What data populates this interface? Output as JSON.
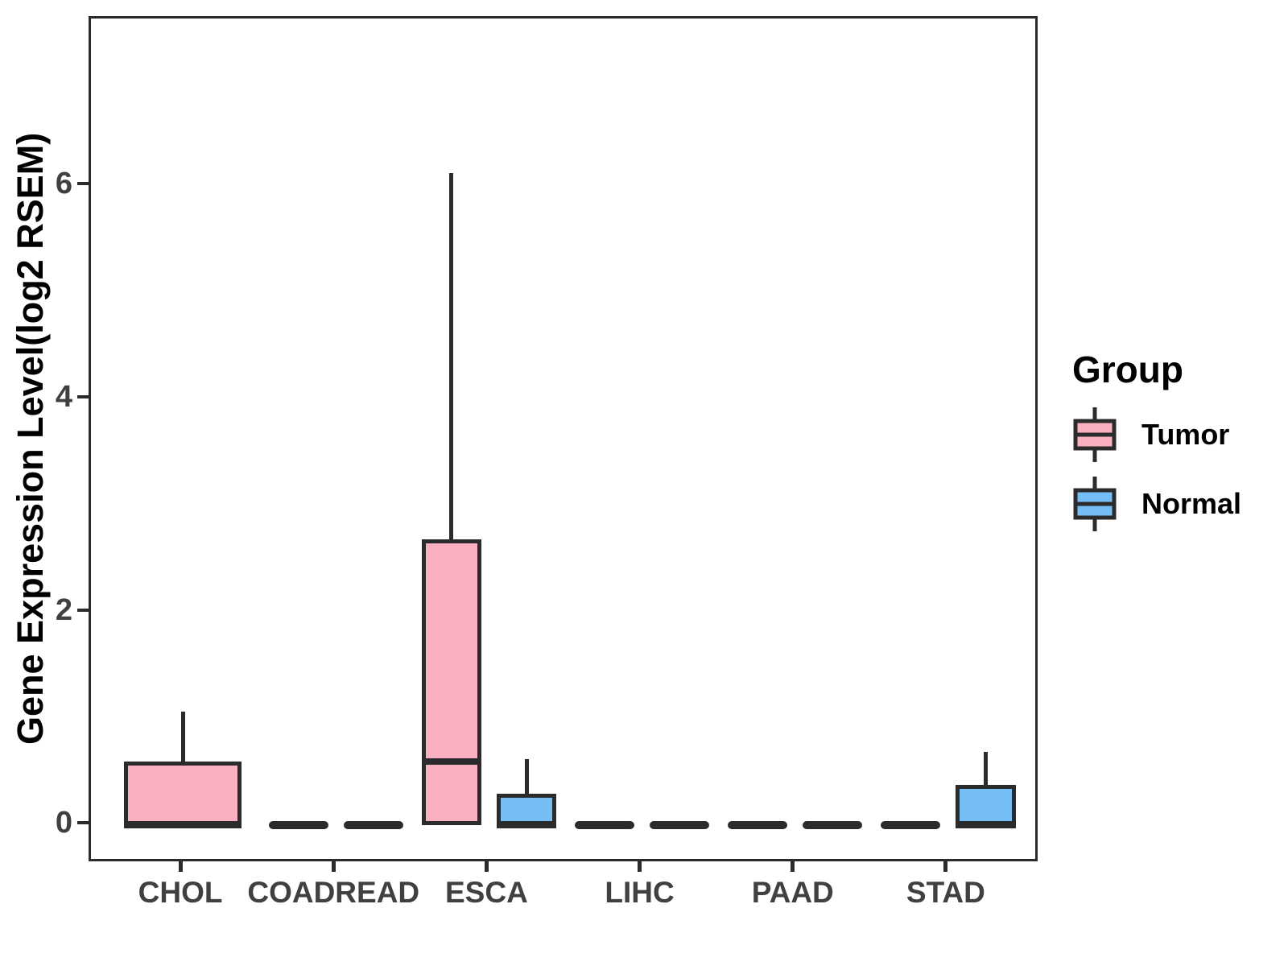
{
  "chart_data": {
    "type": "boxplot",
    "title": "",
    "xlabel": "",
    "ylabel": "Gene Expression Level(log2 RSEM)",
    "categories": [
      "CHOL",
      "COADREAD",
      "ESCA",
      "LIHC",
      "PAAD",
      "STAD"
    ],
    "y_ticks": [
      0,
      2,
      4,
      6
    ],
    "y_range": [
      -0.36,
      7.57
    ],
    "x_range_units": [
      0.4,
      6.6
    ],
    "grid": "off",
    "legend_position": "right",
    "groups": [
      {
        "name": "Tumor",
        "color": "#FAB0C1"
      },
      {
        "name": "Normal",
        "color": "#75BEF5"
      }
    ],
    "stroke_color": "#2b2b2b",
    "axis_text_color": "#404040",
    "boxes": [
      {
        "category": "CHOL",
        "group": "Tumor",
        "min": 0,
        "q1": 0,
        "median": 0,
        "q3": 0.6,
        "max": 1.07,
        "offset": 0,
        "width": 0.77
      },
      {
        "category": "COADREAD",
        "group": "Tumor",
        "min": 0,
        "q1": 0,
        "median": 0,
        "q3": 0,
        "max": 0,
        "offset": -0.245,
        "width": 0.39
      },
      {
        "category": "COADREAD",
        "group": "Normal",
        "min": 0,
        "q1": 0,
        "median": 0,
        "q3": 0,
        "max": 0,
        "offset": 0.245,
        "width": 0.39
      },
      {
        "category": "ESCA",
        "group": "Tumor",
        "min": 0,
        "q1": 0,
        "median": 0.6,
        "q3": 2.68,
        "max": 6.12,
        "offset": -0.245,
        "width": 0.39
      },
      {
        "category": "ESCA",
        "group": "Normal",
        "min": 0,
        "q1": 0,
        "median": 0,
        "q3": 0.3,
        "max": 0.62,
        "offset": 0.245,
        "width": 0.39
      },
      {
        "category": "LIHC",
        "group": "Tumor",
        "min": 0,
        "q1": 0,
        "median": 0,
        "q3": 0,
        "max": 0,
        "offset": -0.245,
        "width": 0.39
      },
      {
        "category": "LIHC",
        "group": "Normal",
        "min": 0,
        "q1": 0,
        "median": 0,
        "q3": 0,
        "max": 0,
        "offset": 0.245,
        "width": 0.39
      },
      {
        "category": "PAAD",
        "group": "Tumor",
        "min": 0,
        "q1": 0,
        "median": 0,
        "q3": 0,
        "max": 0,
        "offset": -0.245,
        "width": 0.39
      },
      {
        "category": "PAAD",
        "group": "Normal",
        "min": 0,
        "q1": 0,
        "median": 0,
        "q3": 0,
        "max": 0,
        "offset": 0.245,
        "width": 0.39
      },
      {
        "category": "STAD",
        "group": "Tumor",
        "min": 0,
        "q1": 0,
        "median": 0,
        "q3": 0,
        "max": 0,
        "offset": -0.245,
        "width": 0.39
      },
      {
        "category": "STAD",
        "group": "Normal",
        "min": 0,
        "q1": 0,
        "median": 0,
        "q3": 0.38,
        "max": 0.69,
        "offset": 0.245,
        "width": 0.39
      }
    ]
  },
  "legend": {
    "title": "Group",
    "items": [
      {
        "label": "Tumor",
        "color": "#FAB0C1"
      },
      {
        "label": "Normal",
        "color": "#75BEF5"
      }
    ]
  }
}
